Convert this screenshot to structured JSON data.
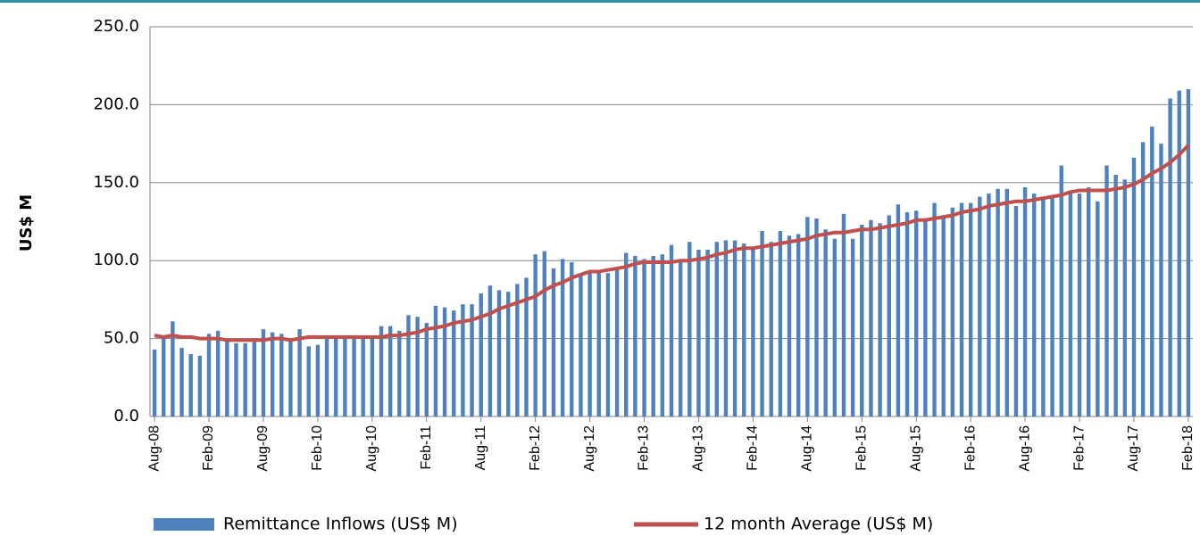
{
  "chart_data": {
    "type": "bar",
    "y_label": "US$ M",
    "ylim": [
      0,
      250
    ],
    "yticks": [
      {
        "value": 0,
        "label": "0.0"
      },
      {
        "value": 50,
        "label": "50.0"
      },
      {
        "value": 100,
        "label": "100.0"
      },
      {
        "value": 150,
        "label": "150.0"
      },
      {
        "value": 200,
        "label": "200.0"
      },
      {
        "value": 250,
        "label": "250.0"
      }
    ],
    "grid": true,
    "legend": "bottom",
    "categories": [
      "Aug-08",
      null,
      null,
      null,
      null,
      null,
      "Feb-09",
      null,
      null,
      null,
      null,
      null,
      "Aug-09",
      null,
      null,
      null,
      null,
      null,
      "Feb-10",
      null,
      null,
      null,
      null,
      null,
      "Aug-10",
      null,
      null,
      null,
      null,
      null,
      "Feb-11",
      null,
      null,
      null,
      null,
      null,
      "Aug-11",
      null,
      null,
      null,
      null,
      null,
      "Feb-12",
      null,
      null,
      null,
      null,
      null,
      "Aug-12",
      null,
      null,
      null,
      null,
      null,
      "Feb-13",
      null,
      null,
      null,
      null,
      null,
      "Aug-13",
      null,
      null,
      null,
      null,
      null,
      "Feb-14",
      null,
      null,
      null,
      null,
      null,
      "Aug-14",
      null,
      null,
      null,
      null,
      null,
      "Feb-15",
      null,
      null,
      null,
      null,
      null,
      "Aug-15",
      null,
      null,
      null,
      null,
      null,
      "Feb-16",
      null,
      null,
      null,
      null,
      null,
      "Aug-16",
      null,
      null,
      null,
      null,
      null,
      "Feb-17",
      null,
      null,
      null,
      null,
      null,
      "Aug-17",
      null,
      null,
      null,
      null,
      null,
      "Feb-18"
    ],
    "series": [
      {
        "name": "Remittance Inflows (US$ M)",
        "type": "bar",
        "color": "#4f81bd",
        "values": [
          43,
          50,
          61,
          44,
          40,
          39,
          53,
          55,
          49,
          47,
          47,
          48,
          56,
          54,
          53,
          50,
          56,
          45,
          46,
          52,
          52,
          51,
          52,
          51,
          50,
          58,
          58,
          55,
          65,
          64,
          60,
          71,
          70,
          68,
          72,
          72,
          79,
          84,
          81,
          80,
          85,
          89,
          104,
          106,
          95,
          101,
          99,
          91,
          93,
          93,
          92,
          95,
          105,
          103,
          101,
          103,
          104,
          110,
          99,
          112,
          107,
          107,
          112,
          113,
          113,
          111,
          107,
          119,
          112,
          119,
          116,
          117,
          128,
          127,
          120,
          114,
          130,
          114,
          123,
          126,
          124,
          129,
          136,
          131,
          132,
          127,
          137,
          128,
          134,
          137,
          137,
          141,
          143,
          146,
          146,
          135,
          147,
          143,
          141,
          142,
          161,
          143,
          143,
          147,
          138,
          161,
          155,
          152,
          166,
          176,
          186,
          175,
          204,
          209,
          210
        ]
      },
      {
        "name": "12 month Average (US$ M)",
        "type": "line",
        "color": "#c0504d",
        "values": [
          52,
          51,
          52,
          51,
          51,
          50,
          50,
          50,
          49,
          49,
          49,
          49,
          49,
          50,
          50,
          49,
          50,
          51,
          51,
          51,
          51,
          51,
          51,
          51,
          51,
          51,
          52,
          52,
          53,
          54,
          56,
          57,
          58,
          60,
          61,
          62,
          64,
          66,
          69,
          71,
          73,
          75,
          77,
          81,
          84,
          86,
          89,
          91,
          93,
          93,
          94,
          95,
          96,
          98,
          99,
          99,
          99,
          99,
          100,
          100,
          101,
          102,
          104,
          105,
          107,
          108,
          108,
          109,
          110,
          111,
          112,
          113,
          114,
          116,
          117,
          118,
          118,
          119,
          120,
          120,
          121,
          122,
          123,
          124,
          126,
          126,
          127,
          128,
          129,
          131,
          132,
          133,
          135,
          136,
          137,
          138,
          138,
          139,
          140,
          141,
          142,
          144,
          145,
          145,
          145,
          145,
          146,
          147,
          149,
          152,
          156,
          159,
          163,
          168,
          174
        ]
      }
    ]
  }
}
